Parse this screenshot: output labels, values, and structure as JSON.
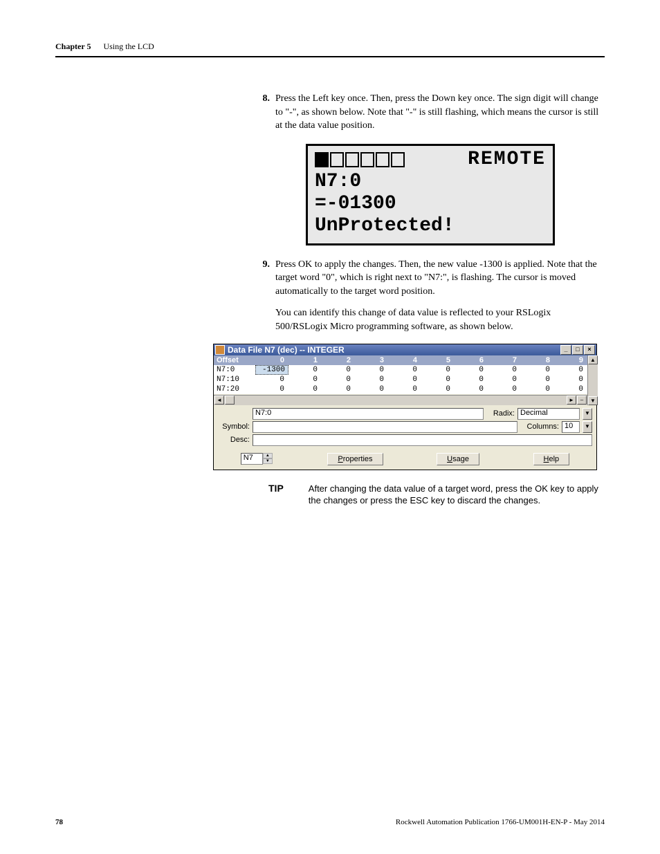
{
  "header": {
    "chapter": "Chapter 5",
    "title": "Using the LCD"
  },
  "step8": {
    "num": "8.",
    "text": "Press the Left key once. Then, press the Down key once. The sign digit will change to \"-\", as shown below. Note that \"-\" is still flashing, which means the cursor is still at the data value position."
  },
  "lcd": {
    "boxes": [
      true,
      false,
      false,
      false,
      false,
      false
    ],
    "status": "REMOTE",
    "line2": "N7:0",
    "line3": "=-01300",
    "line4": "UnProtected!"
  },
  "step9": {
    "num": "9.",
    "text": "Press OK to apply the changes. Then, the new value -1300 is applied. Note that the target word \"0\", which is right next to \"N7:\", is flashing. The cursor is moved automatically to the target word position.",
    "para2": "You can identify this change of data value is reflected to your RSLogix 500/RSLogix Micro programming software, as shown below."
  },
  "rslogix": {
    "title": "Data File N7 (dec)  --  INTEGER",
    "min": "_",
    "max": "□",
    "close": "×",
    "cols": [
      "Offset",
      "0",
      "1",
      "2",
      "3",
      "4",
      "5",
      "6",
      "7",
      "8",
      "9"
    ],
    "rows": [
      {
        "off": "N7:0",
        "v": [
          "-1300",
          "0",
          "0",
          "0",
          "0",
          "0",
          "0",
          "0",
          "0",
          "0"
        ],
        "sel": 0
      },
      {
        "off": "N7:10",
        "v": [
          "0",
          "0",
          "0",
          "0",
          "0",
          "0",
          "0",
          "0",
          "0",
          "0"
        ],
        "sel": -1
      },
      {
        "off": "N7:20",
        "v": [
          "0",
          "0",
          "0",
          "0",
          "0",
          "0",
          "0",
          "0",
          "0",
          "0"
        ],
        "sel": -1
      }
    ],
    "addr_value": "N7:0",
    "radix_label": "Radix:",
    "radix_value": "Decimal",
    "symbol_label": "Symbol:",
    "symbol_value": "",
    "columns_label": "Columns:",
    "columns_value": "10",
    "desc_label": "Desc:",
    "desc_value": "",
    "file_value": "N7",
    "btn_props": "Properties",
    "btn_usage": "Usage",
    "btn_help": "Help"
  },
  "tip": {
    "label": "TIP",
    "text": "After changing the data value of a target word, press the OK key to apply the changes or press the ESC key to discard the changes."
  },
  "footer": {
    "page": "78",
    "pub": "Rockwell Automation Publication 1766-UM001H-EN-P - May 2014"
  }
}
